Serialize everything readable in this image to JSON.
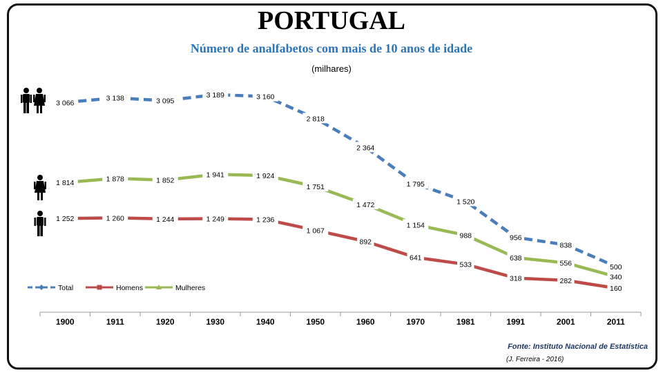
{
  "header": {
    "title": "PORTUGAL",
    "subtitle": "Número de analfabetos com mais de 10 anos de idade",
    "unit": "(milhares)"
  },
  "footer": {
    "source": "Fonte: Instituto Nacional de Estatística",
    "author": "(J. Ferreira - 2016)"
  },
  "colors": {
    "total": "#4A7EBB",
    "homens": "#BE4B48",
    "mulheres": "#98B954",
    "subtitle": "#2E75B6",
    "source": "#1F3864"
  },
  "icons": {
    "total": "people-couple-icon",
    "mulheres": "woman-icon",
    "homens": "man-icon"
  },
  "chart_data": {
    "type": "line",
    "categories": [
      "1900",
      "1911",
      "1920",
      "1930",
      "1940",
      "1950",
      "1960",
      "1970",
      "1981",
      "1991",
      "2001",
      "2011"
    ],
    "series": [
      {
        "key": "total",
        "name": "Total",
        "style": "dashed",
        "values": [
          3066,
          3138,
          3095,
          3189,
          3160,
          2818,
          2364,
          1795,
          1520,
          956,
          838,
          500
        ],
        "labels": [
          "3 066",
          "3 138",
          "3 095",
          "3 189",
          "3 160",
          "2 818",
          "2 364",
          "1 795",
          "1 520",
          "956",
          "838",
          "500"
        ]
      },
      {
        "key": "homens",
        "name": "Homens",
        "style": "solid",
        "values": [
          1252,
          1260,
          1244,
          1249,
          1236,
          1067,
          892,
          641,
          533,
          318,
          282,
          160
        ],
        "labels": [
          "1 252",
          "1 260",
          "1 244",
          "1 249",
          "1 236",
          "1 067",
          "892",
          "641",
          "533",
          "318",
          "282",
          "160"
        ]
      },
      {
        "key": "mulheres",
        "name": "Mulheres",
        "style": "solid",
        "values": [
          1814,
          1878,
          1852,
          1941,
          1924,
          1751,
          1472,
          1154,
          988,
          638,
          556,
          340
        ],
        "labels": [
          "1 814",
          "1 878",
          "1 852",
          "1 941",
          "1 924",
          "1 751",
          "1 472",
          "1 154",
          "988",
          "638",
          "556",
          "340"
        ]
      }
    ],
    "xlabel": "",
    "ylabel": "",
    "legend_position": "bottom-left",
    "grid": false
  }
}
